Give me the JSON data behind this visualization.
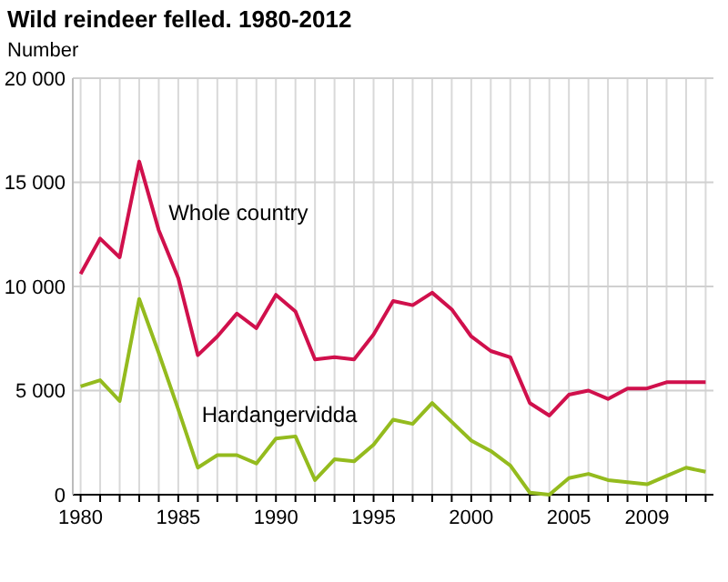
{
  "chart_data": {
    "type": "line",
    "title": "Wild reindeer felled. 1980-2012",
    "ylabel": "Number",
    "x": [
      1980,
      1981,
      1982,
      1983,
      1984,
      1985,
      1986,
      1987,
      1988,
      1989,
      1990,
      1991,
      1992,
      1993,
      1994,
      1995,
      1996,
      1997,
      1998,
      1999,
      2000,
      2001,
      2002,
      2003,
      2004,
      2005,
      2006,
      2007,
      2008,
      2009,
      2010,
      2011,
      2012
    ],
    "series": [
      {
        "name": "Whole country",
        "color": "#d0104c",
        "values": [
          10600,
          12300,
          11400,
          16000,
          12700,
          10400,
          6700,
          7600,
          8700,
          8000,
          9600,
          8800,
          6500,
          6600,
          6500,
          7700,
          9300,
          9100,
          9700,
          8900,
          7600,
          6900,
          6600,
          4400,
          3800,
          4800,
          5000,
          4600,
          5100,
          5100,
          5400,
          5400,
          5400
        ]
      },
      {
        "name": "Hardangervidda",
        "color": "#94bb1e",
        "values": [
          5200,
          5500,
          4500,
          9400,
          6800,
          4100,
          1300,
          1900,
          1900,
          1500,
          2700,
          2800,
          700,
          1700,
          1600,
          2400,
          3600,
          3400,
          4400,
          3500,
          2600,
          2100,
          1400,
          100,
          0,
          800,
          1000,
          700,
          600,
          500,
          900,
          1300,
          1100
        ]
      }
    ],
    "xlim": [
      1979.6,
      2012.4
    ],
    "xticks": [
      1980,
      {
        "value": 1981,
        "label": null
      },
      {
        "value": 1982,
        "label": null
      },
      {
        "value": 1983,
        "label": null
      },
      {
        "value": 1984,
        "label": null
      },
      1985,
      {
        "value": 1986,
        "label": null
      },
      {
        "value": 1987,
        "label": null
      },
      {
        "value": 1988,
        "label": null
      },
      {
        "value": 1989,
        "label": null
      },
      1990,
      {
        "value": 1991,
        "label": null
      },
      {
        "value": 1992,
        "label": null
      },
      {
        "value": 1993,
        "label": null
      },
      {
        "value": 1994,
        "label": null
      },
      1995,
      {
        "value": 1996,
        "label": null
      },
      {
        "value": 1997,
        "label": null
      },
      {
        "value": 1998,
        "label": null
      },
      {
        "value": 1999,
        "label": null
      },
      2000,
      {
        "value": 2001,
        "label": null
      },
      {
        "value": 2002,
        "label": null
      },
      {
        "value": 2003,
        "label": null
      },
      {
        "value": 2004,
        "label": null
      },
      2005,
      {
        "value": 2006,
        "label": null
      },
      {
        "value": 2007,
        "label": null
      },
      {
        "value": 2008,
        "label": null
      },
      2009,
      {
        "value": 2010,
        "label": null
      },
      {
        "value": 2011,
        "label": null
      },
      {
        "value": 2012,
        "label": null
      }
    ],
    "ylim": [
      0,
      20000
    ],
    "yticks": [
      {
        "value": 0,
        "label": "0"
      },
      {
        "value": 5000,
        "label": "5 000"
      },
      {
        "value": 10000,
        "label": "10 000"
      },
      {
        "value": 15000,
        "label": "15 000"
      },
      {
        "value": 20000,
        "label": "20 000"
      }
    ],
    "grid": true,
    "line_style": "solid",
    "marker": "none"
  }
}
